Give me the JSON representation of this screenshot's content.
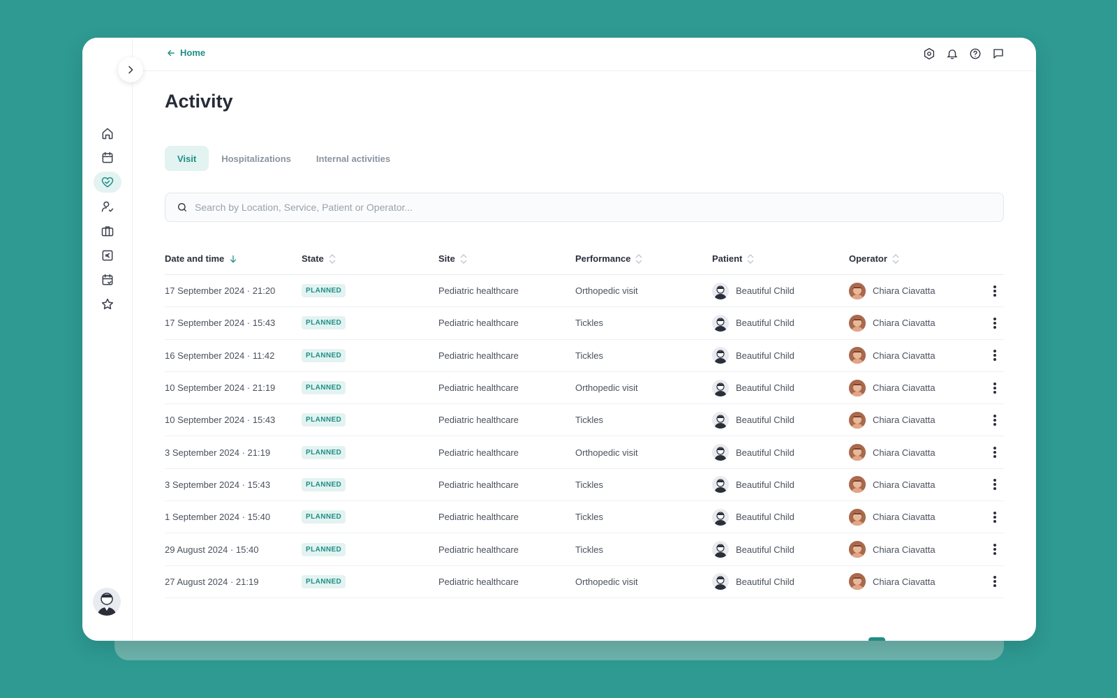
{
  "breadcrumb": {
    "back_label": "Home"
  },
  "page": {
    "title": "Activity"
  },
  "tabs": [
    {
      "label": "Visit",
      "active": true
    },
    {
      "label": "Hospitalizations",
      "active": false
    },
    {
      "label": "Internal activities",
      "active": false
    }
  ],
  "search": {
    "placeholder": "Search by Location, Service, Patient or Operator...",
    "value": ""
  },
  "sidebar": {
    "items": [
      {
        "icon": "home-icon"
      },
      {
        "icon": "calendar-icon"
      },
      {
        "icon": "heart-handshake-icon",
        "active": true
      },
      {
        "icon": "user-check-icon"
      },
      {
        "icon": "briefcase-icon"
      },
      {
        "icon": "euro-icon"
      },
      {
        "icon": "calendar-check-icon"
      },
      {
        "icon": "star-icon"
      }
    ]
  },
  "topbar_icons": [
    "settings-icon",
    "bell-icon",
    "help-icon",
    "chat-icon"
  ],
  "table": {
    "columns": {
      "date": "Date and time",
      "state": "State",
      "site": "Site",
      "performance": "Performance",
      "patient": "Patient",
      "operator": "Operator"
    },
    "sort": {
      "column": "Date and time",
      "direction": "desc"
    },
    "rows": [
      {
        "date": "17 September 2024 · 21:20",
        "state": "PLANNED",
        "site": "Pediatric healthcare",
        "performance": "Orthopedic visit",
        "patient": "Beautiful Child",
        "operator": "Chiara Ciavatta"
      },
      {
        "date": "17 September 2024 · 15:43",
        "state": "PLANNED",
        "site": "Pediatric healthcare",
        "performance": "Tickles",
        "patient": "Beautiful Child",
        "operator": "Chiara Ciavatta"
      },
      {
        "date": "16 September 2024 · 11:42",
        "state": "PLANNED",
        "site": "Pediatric healthcare",
        "performance": "Tickles",
        "patient": "Beautiful Child",
        "operator": "Chiara Ciavatta"
      },
      {
        "date": "10 September 2024 · 21:19",
        "state": "PLANNED",
        "site": "Pediatric healthcare",
        "performance": "Orthopedic visit",
        "patient": "Beautiful Child",
        "operator": "Chiara Ciavatta"
      },
      {
        "date": "10 September 2024 · 15:43",
        "state": "PLANNED",
        "site": "Pediatric healthcare",
        "performance": "Tickles",
        "patient": "Beautiful Child",
        "operator": "Chiara Ciavatta"
      },
      {
        "date": "3 September 2024 · 21:19",
        "state": "PLANNED",
        "site": "Pediatric healthcare",
        "performance": "Orthopedic visit",
        "patient": "Beautiful Child",
        "operator": "Chiara Ciavatta"
      },
      {
        "date": "3 September 2024 · 15:43",
        "state": "PLANNED",
        "site": "Pediatric healthcare",
        "performance": "Tickles",
        "patient": "Beautiful Child",
        "operator": "Chiara Ciavatta"
      },
      {
        "date": "1 September 2024 · 15:40",
        "state": "PLANNED",
        "site": "Pediatric healthcare",
        "performance": "Tickles",
        "patient": "Beautiful Child",
        "operator": "Chiara Ciavatta"
      },
      {
        "date": "29 August 2024 · 15:40",
        "state": "PLANNED",
        "site": "Pediatric healthcare",
        "performance": "Tickles",
        "patient": "Beautiful Child",
        "operator": "Chiara Ciavatta"
      },
      {
        "date": "27 August 2024 · 21:19",
        "state": "PLANNED",
        "site": "Pediatric healthcare",
        "performance": "Orthopedic visit",
        "patient": "Beautiful Child",
        "operator": "Chiara Ciavatta"
      }
    ]
  },
  "colors": {
    "accent": "#1f8e85",
    "accent_bg": "#e2f3f1",
    "background": "#2e9a92"
  }
}
